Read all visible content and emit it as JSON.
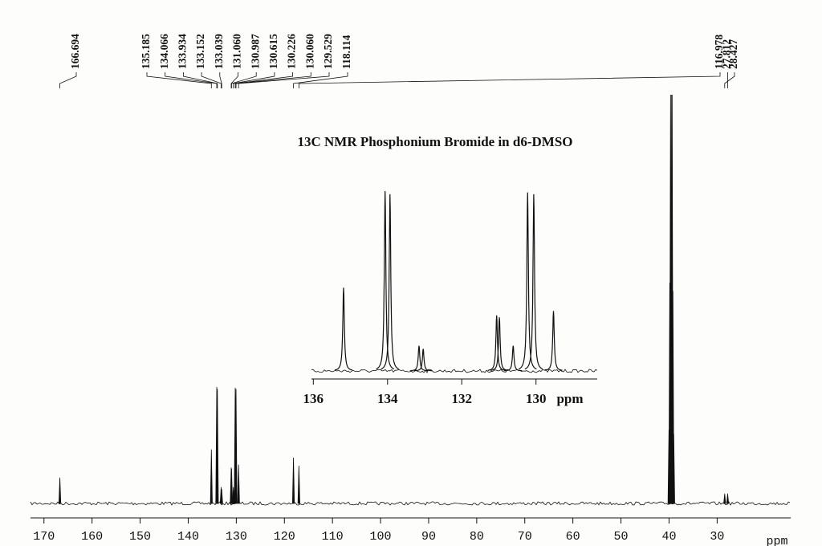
{
  "chart_data": {
    "type": "spectrum",
    "title": "13C NMR Phosphonium Bromide in d6-DMSO",
    "x_label": "ppm",
    "xlim": [
      172.8,
      14.7
    ],
    "xticks": [
      170,
      160,
      150,
      140,
      130,
      120,
      110,
      100,
      90,
      80,
      70,
      60,
      50,
      40,
      30
    ],
    "ylim": [
      0,
      100
    ],
    "color": "#111111",
    "labeled_peaks": {
      "x": [
        166.694,
        135.185,
        134.066,
        133.934,
        133.152,
        133.039,
        {
          "value": 131.06,
          "label": "131.060"
        },
        130.987,
        130.615,
        130.226,
        {
          "value": 130.06,
          "label": "130.060"
        },
        129.529,
        118.114,
        116.978,
        28.427,
        27.812
      ],
      "values": [
        6.3,
        13.2,
        28.5,
        28,
        4,
        3.5,
        8.8,
        8.5,
        4,
        28.3,
        28,
        9.5,
        11.2,
        9.2,
        2.4,
        2.4
      ]
    },
    "solvent_peaks": {
      "x": [
        40.02,
        39.85,
        39.69,
        39.52,
        39.35,
        39.19,
        39.02
      ],
      "values": [
        18,
        54,
        100,
        100,
        100,
        52,
        17
      ]
    },
    "inset": {
      "x_label": "ppm",
      "xlim": [
        136.05,
        128.35
      ],
      "xticks": [
        136,
        134,
        132,
        130
      ],
      "ylim": [
        0,
        28.5
      ]
    }
  }
}
